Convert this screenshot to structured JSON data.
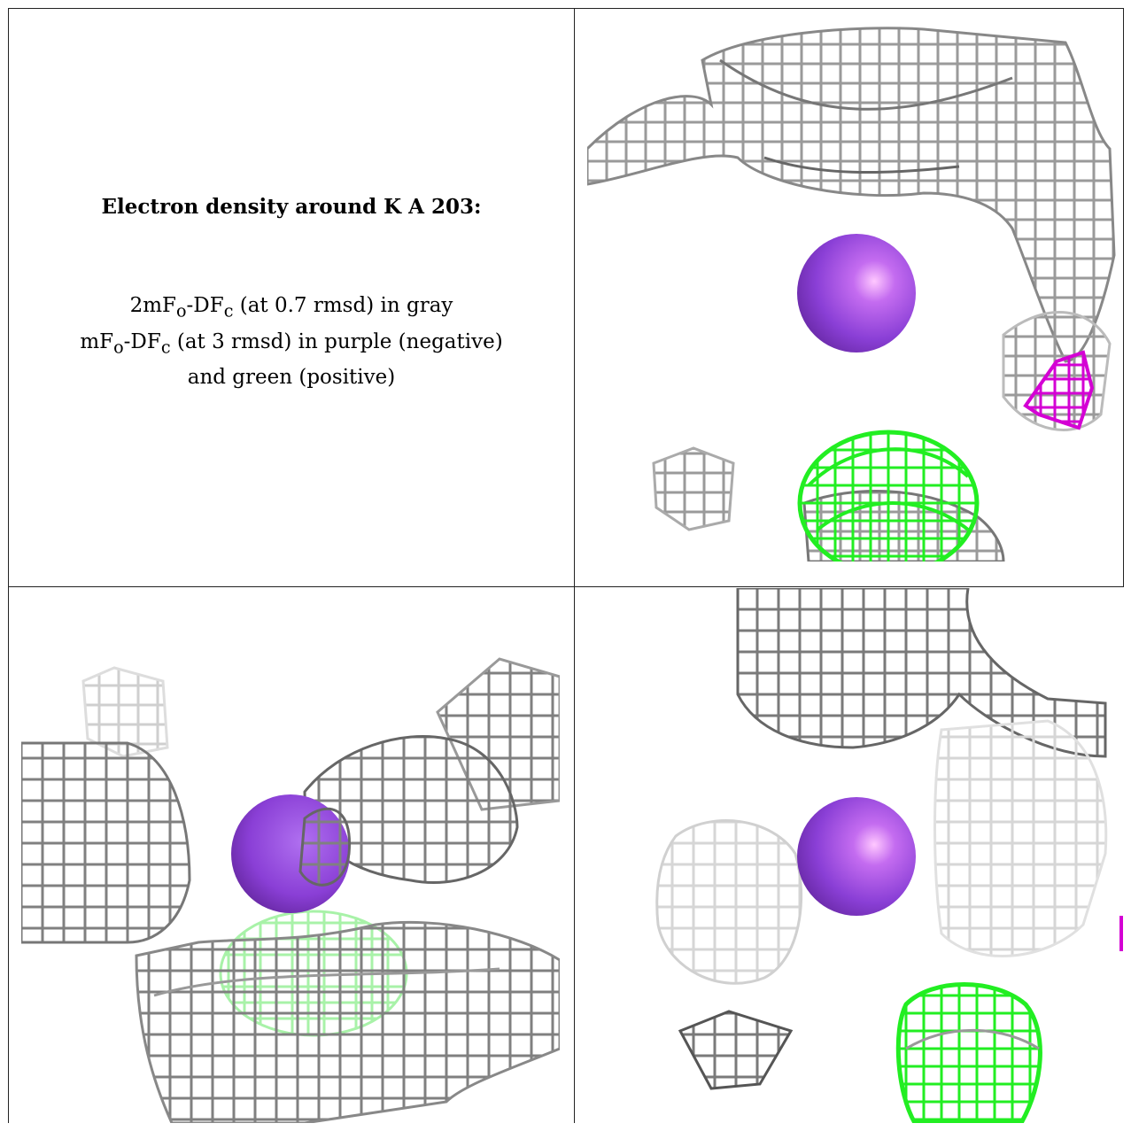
{
  "caption": {
    "title": "Electron density around K A 203:",
    "line1": "2mFo-DFc (at 0.7 rmsd) in gray",
    "line2": "mFo-DFc (at 3 rmsd) in purple (negative)",
    "line3": "and green (positive)"
  },
  "colors": {
    "ion": "#8a3fd6",
    "gray_mesh": "#8c8c8c",
    "negative_mesh": "#d400d4",
    "positive_mesh": "#22ee22"
  }
}
